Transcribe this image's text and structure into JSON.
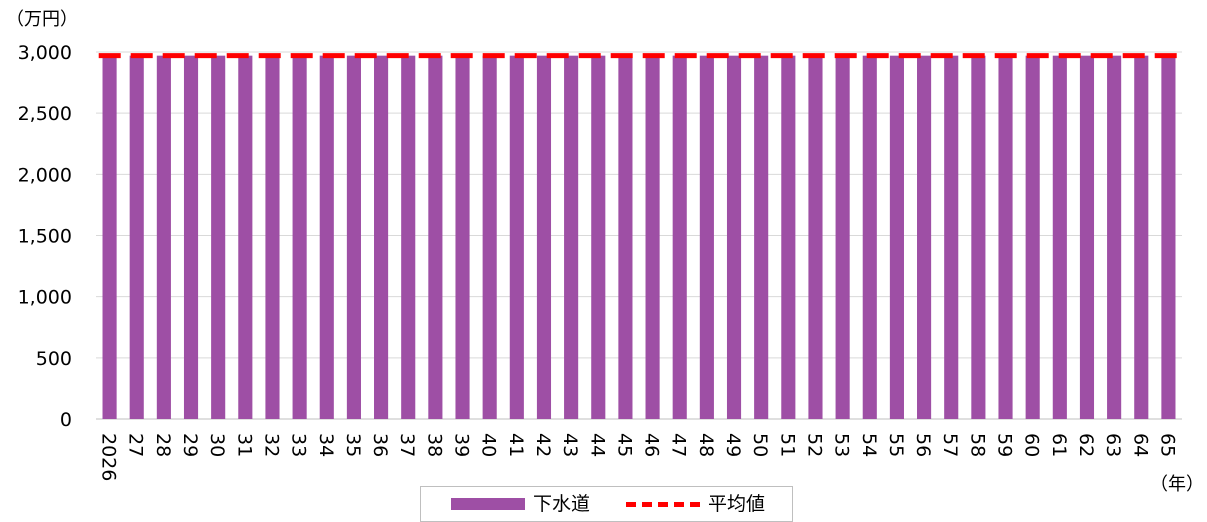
{
  "chart_data": {
    "type": "bar",
    "ylabel": "（万円）",
    "xlabel": "（年）",
    "ylim": [
      0,
      3000
    ],
    "yticks": [
      0,
      500,
      1000,
      1500,
      2000,
      2500,
      3000
    ],
    "ytick_labels": [
      "0",
      "500",
      "1,000",
      "1,500",
      "2,000",
      "2,500",
      "3,000"
    ],
    "categories": [
      "2026",
      "27",
      "28",
      "29",
      "30",
      "31",
      "32",
      "33",
      "34",
      "35",
      "36",
      "37",
      "38",
      "39",
      "40",
      "41",
      "42",
      "43",
      "44",
      "45",
      "46",
      "47",
      "48",
      "49",
      "50",
      "51",
      "52",
      "53",
      "54",
      "55",
      "56",
      "57",
      "58",
      "59",
      "60",
      "61",
      "62",
      "63",
      "64",
      "65"
    ],
    "series": [
      {
        "name": "下水道",
        "type": "bar",
        "color": "#9e4fa5",
        "values": [
          2970,
          2970,
          2970,
          2970,
          2970,
          2970,
          2970,
          2970,
          2970,
          2970,
          2970,
          2970,
          2970,
          2970,
          2970,
          2970,
          2970,
          2970,
          2970,
          2970,
          2970,
          2970,
          2970,
          2970,
          2970,
          2970,
          2970,
          2970,
          2970,
          2970,
          2970,
          2970,
          2970,
          2970,
          2970,
          2970,
          2970,
          2970,
          2970,
          2970
        ]
      },
      {
        "name": "平均値",
        "type": "line",
        "style": "dashed",
        "color": "#ff0000",
        "value": 2970
      }
    ],
    "grid": true,
    "legend": "bottom-center"
  }
}
